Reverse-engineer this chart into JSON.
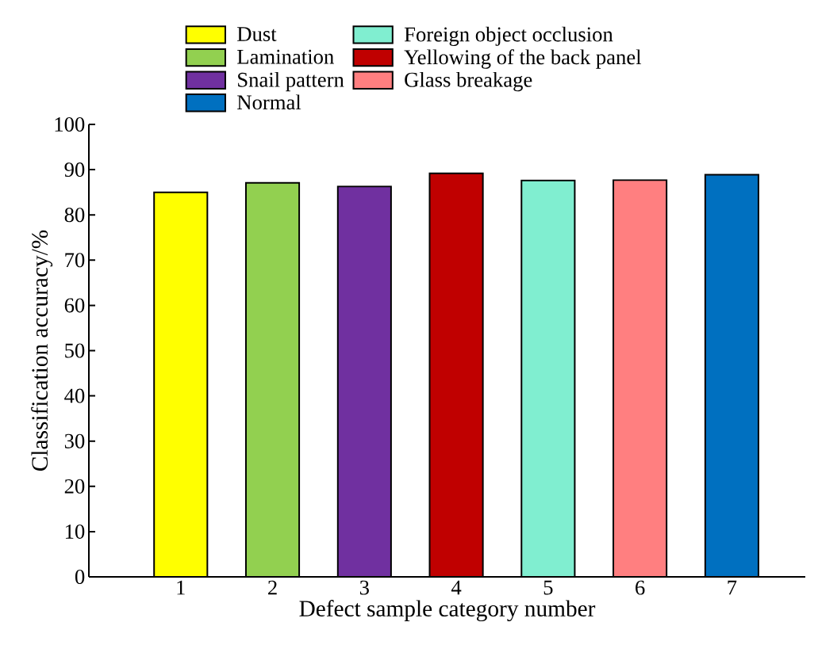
{
  "chart_data": {
    "type": "bar",
    "xlabel": "Defect sample category number",
    "ylabel": "Classification accuracy/%",
    "series": [
      {
        "name": "Dust",
        "color": "#ffff00",
        "x": [
          1
        ],
        "values": [
          85
        ]
      },
      {
        "name": "Lamination",
        "color": "#92d050",
        "x": [
          2
        ],
        "values": [
          87.1
        ]
      },
      {
        "name": "Snail pattern",
        "color": "#7030a0",
        "x": [
          3
        ],
        "values": [
          86.3
        ]
      },
      {
        "name": "Normal",
        "color": "#0070c0",
        "x": [
          7
        ],
        "values": [
          88.9
        ]
      },
      {
        "name": "Foreign object occlusion",
        "color": "#80eed0",
        "x": [
          5
        ],
        "values": [
          87.6
        ]
      },
      {
        "name": "Yellowing of the back panel",
        "color": "#c00000",
        "x": [
          4
        ],
        "values": [
          89.2
        ]
      },
      {
        "name": "Glass breakage",
        "color": "#ff7f80",
        "x": [
          6
        ],
        "values": [
          87.7
        ]
      }
    ],
    "xlim": [
      0,
      7.8
    ],
    "xticks": [
      1,
      2,
      3,
      4,
      5,
      6,
      7
    ],
    "ylim": [
      0,
      100
    ],
    "yticks": [
      0,
      10,
      20,
      30,
      40,
      50,
      60,
      70,
      80,
      90,
      100
    ],
    "grid": false,
    "legend": "top"
  }
}
